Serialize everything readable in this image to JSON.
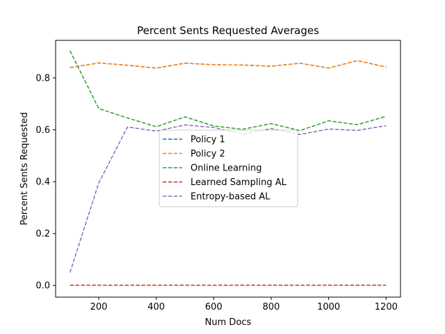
{
  "chart_data": {
    "type": "line",
    "title": "Percent Sents Requested Averages",
    "xlabel": "Num Docs",
    "ylabel": "Percent Sents Requested",
    "xlim": [
      50,
      1250
    ],
    "ylim": [
      -0.045,
      0.945
    ],
    "xticks": [
      200,
      400,
      600,
      800,
      1000,
      1200
    ],
    "xtick_labels": [
      "200",
      "400",
      "600",
      "800",
      "1000",
      "1200"
    ],
    "yticks": [
      0.0,
      0.2,
      0.4,
      0.6,
      0.8
    ],
    "ytick_labels": [
      "0.0",
      "0.2",
      "0.4",
      "0.6",
      "0.8"
    ],
    "grid": false,
    "legend_position": "center",
    "x": [
      100,
      200,
      300,
      400,
      500,
      600,
      700,
      800,
      900,
      1000,
      1100,
      1200
    ],
    "series": [
      {
        "name": "Policy 1",
        "color": "#1f77b4",
        "style": "dashed",
        "values": [
          0.84,
          0.858,
          0.849,
          0.838,
          0.857,
          0.851,
          0.85,
          0.845,
          0.857,
          0.838,
          0.867,
          0.842
        ]
      },
      {
        "name": "Policy 2",
        "color": "#ff7f0e",
        "style": "dashed",
        "values": [
          0.84,
          0.858,
          0.849,
          0.838,
          0.857,
          0.851,
          0.85,
          0.845,
          0.857,
          0.838,
          0.867,
          0.842
        ]
      },
      {
        "name": "Online Learning",
        "color": "#2ca02c",
        "style": "dashed",
        "values": [
          0.905,
          0.682,
          0.646,
          0.612,
          0.65,
          0.615,
          0.602,
          0.624,
          0.597,
          0.635,
          0.62,
          0.652
        ]
      },
      {
        "name": "Learned Sampling AL",
        "color": "#d62728",
        "style": "dashed",
        "values": [
          0.001,
          0.001,
          0.001,
          0.001,
          0.001,
          0.001,
          0.001,
          0.001,
          0.001,
          0.001,
          0.001,
          0.001
        ]
      },
      {
        "name": "Entropy-based AL",
        "color": "#9467bd",
        "style": "dashed",
        "values": [
          0.05,
          0.395,
          0.611,
          0.595,
          0.619,
          0.609,
          0.583,
          0.605,
          0.582,
          0.603,
          0.598,
          0.616
        ]
      }
    ]
  }
}
